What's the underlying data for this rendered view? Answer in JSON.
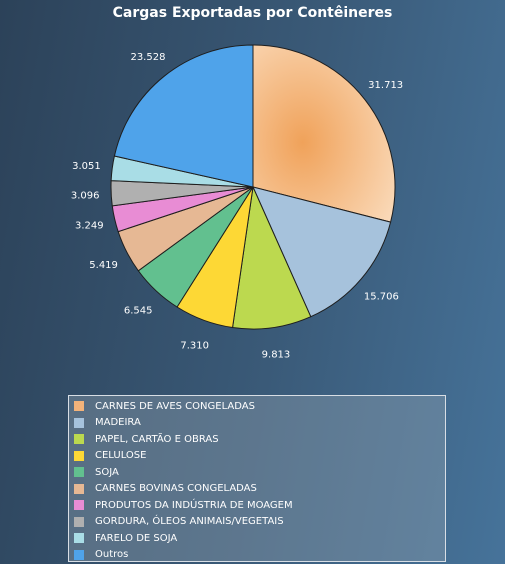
{
  "chart_data": {
    "type": "pie",
    "title": "Cargas Exportadas por Contêineres",
    "slices": [
      {
        "label": "CARNES DE AVES CONGELADAS",
        "value": 31713,
        "display": "31.713",
        "color": "#f4b37a"
      },
      {
        "label": "MADEIRA",
        "value": 15706,
        "display": "15.706",
        "color": "#a6c2dc"
      },
      {
        "label": "PAPEL, CARTÃO E OBRAS",
        "value": 9813,
        "display": "9.813",
        "color": "#bcd94f"
      },
      {
        "label": "CELULOSE",
        "value": 7310,
        "display": "7.310",
        "color": "#fdd835"
      },
      {
        "label": "SOJA",
        "value": 6545,
        "display": "6.545",
        "color": "#62c08f"
      },
      {
        "label": "CARNES BOVINAS CONGELADAS",
        "value": 5419,
        "display": "5.419",
        "color": "#e6b894"
      },
      {
        "label": "PRODUTOS DA INDÚSTRIA DE MOAGEM",
        "value": 3249,
        "display": "3.249",
        "color": "#e88cd4"
      },
      {
        "label": "GORDURA, ÓLEOS ANIMAIS/VEGETAIS",
        "value": 3096,
        "display": "3.096",
        "color": "#b0b0b0"
      },
      {
        "label": "FARELO DE SOJA",
        "value": 3051,
        "display": "3.051",
        "color": "#a9dde6"
      },
      {
        "label": "Outros",
        "value": 23528,
        "display": "23.528",
        "color": "#4fa3ea"
      }
    ],
    "legend_position": "bottom"
  }
}
